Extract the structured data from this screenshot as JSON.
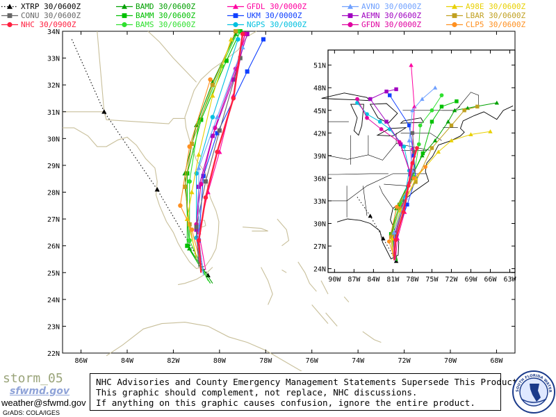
{
  "legend": [
    {
      "code": "XTRP",
      "time": "30/0600Z",
      "color": "#000000",
      "marker": "triangle",
      "dotted": true
    },
    {
      "code": "BAMD",
      "time": "30/0600Z",
      "color": "#00a000",
      "marker": "triangle"
    },
    {
      "code": "GFDL",
      "time": "30/0000Z",
      "color": "#ff00a0",
      "marker": "triangle"
    },
    {
      "code": "AVNO",
      "time": "30/0000Z",
      "color": "#6fa0ff",
      "marker": "triangle"
    },
    {
      "code": "A98E",
      "time": "30/0600Z",
      "color": "#e8d000",
      "marker": "triangle"
    },
    {
      "code": "CONU",
      "time": "30/0600Z",
      "color": "#666666",
      "marker": "square"
    },
    {
      "code": "BAMM",
      "time": "30/0600Z",
      "color": "#00c000",
      "marker": "square"
    },
    {
      "code": "UKM",
      "time": "30/0000Z",
      "color": "#1040ff",
      "marker": "square"
    },
    {
      "code": "AEMN",
      "time": "30/0600Z",
      "color": "#a000c0",
      "marker": "square"
    },
    {
      "code": "LBAR",
      "time": "30/0600Z",
      "color": "#c0a020",
      "marker": "square"
    },
    {
      "code": "NHC",
      "time": "30/0900Z",
      "color": "#ff2040",
      "marker": "circle"
    },
    {
      "code": "BAMS",
      "time": "30/0600Z",
      "color": "#30e030",
      "marker": "circle"
    },
    {
      "code": "NGPS",
      "time": "30/0000Z",
      "color": "#00c0e0",
      "marker": "circle"
    },
    {
      "code": "GFDN",
      "time": "30/0000Z",
      "color": "#e000a0",
      "marker": "circle"
    },
    {
      "code": "CLP5",
      "time": "30/0600Z",
      "color": "#ff9020",
      "marker": "circle"
    }
  ],
  "main_map": {
    "lat_labels": [
      "22N",
      "23N",
      "24N",
      "25N",
      "26N",
      "27N",
      "28N",
      "29N",
      "30N",
      "31N",
      "32N",
      "33N",
      "34N"
    ],
    "lon_labels": [
      "86W",
      "84W",
      "82W",
      "80W",
      "78W",
      "76W",
      "74W",
      "72W",
      "70W",
      "68W"
    ],
    "lat_range": [
      22,
      34
    ],
    "lon_range": [
      -86.8,
      -67.2
    ]
  },
  "inset_map": {
    "lat_labels": [
      "24N",
      "27N",
      "30N",
      "33N",
      "36N",
      "39N",
      "42N",
      "45N",
      "48N",
      "51N"
    ],
    "lon_labels": [
      "90W",
      "87W",
      "84W",
      "81W",
      "78W",
      "75W",
      "72W",
      "69W",
      "66W",
      "63W"
    ],
    "lat_range": [
      23.5,
      53
    ],
    "lon_range": [
      -91,
      -62.2
    ]
  },
  "footer": {
    "brand": "storm_05",
    "logo_text": "sfwmd.gov",
    "email": "weather@sfwmd.gov",
    "grads": "GrADS: COLA/IGES",
    "disclaimer": [
      "NHC Advisories and County Emergency Management Statements Supersede This Product.",
      "This graphic should complement, not replace, NHC discussions.",
      "If anything on this graphic causes confusion, ignore the entire product."
    ],
    "seal_text": "SOUTH FLORIDA WATER MANAGEMENT DISTRICT"
  }
}
